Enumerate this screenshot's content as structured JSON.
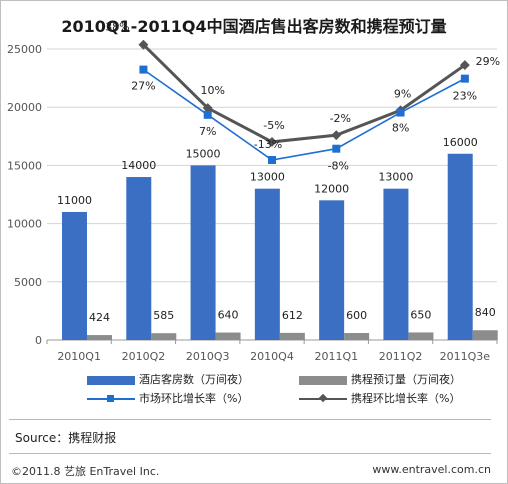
{
  "title": "2010Q1-2011Q4中国酒店售出客房数和携程预订量",
  "legend": {
    "hotel_rooms": "酒店客房数（万间夜）",
    "ctrip_bookings": "携程预订量（万间夜）",
    "market_qoq": "市场环比增长率（%）",
    "ctrip_qoq": "携程环比增长率（%）"
  },
  "source": "Source：携程财报",
  "footer": {
    "copyright": "©2011.8  艺旅  EnTravel Inc.",
    "website": "www.entravel.com.cn"
  },
  "colors": {
    "hotel_bar": "#3a6fc4",
    "ctrip_bar": "#8c8c8c",
    "market_line": "#1f6fd1",
    "ctrip_line": "#555555"
  },
  "chart_data": {
    "type": "bar",
    "title": "2010Q1-2011Q4中国酒店售出客房数和携程预订量",
    "categories": [
      "2010Q1",
      "2010Q2",
      "2010Q3",
      "2010Q4",
      "2011Q1",
      "2011Q2",
      "2011Q3e"
    ],
    "ylim": [
      0,
      25000
    ],
    "yticks": [
      0,
      5000,
      10000,
      15000,
      20000,
      25000
    ],
    "grid": true,
    "legend_position": "bottom",
    "series": [
      {
        "name": "酒店客房数（万间夜）",
        "kind": "bar",
        "values": [
          11000,
          14000,
          15000,
          13000,
          12000,
          13000,
          16000
        ]
      },
      {
        "name": "携程预订量（万间夜）",
        "kind": "bar",
        "values": [
          424,
          585,
          640,
          612,
          600,
          650,
          840
        ]
      },
      {
        "name": "市场环比增长率（%）",
        "kind": "line",
        "marker": "square",
        "labels": [
          "",
          "27%",
          "7%",
          "-13%",
          "-8%",
          "8%",
          "23%"
        ],
        "values": [
          null,
          27,
          7,
          -13,
          -8,
          8,
          23
        ]
      },
      {
        "name": "携程环比增长率（%）",
        "kind": "line",
        "marker": "diamond",
        "labels": [
          "",
          "38%",
          "10%",
          "-5%",
          "-2%",
          "9%",
          "29%"
        ],
        "values": [
          null,
          38,
          10,
          -5,
          -2,
          9,
          29
        ]
      }
    ]
  }
}
